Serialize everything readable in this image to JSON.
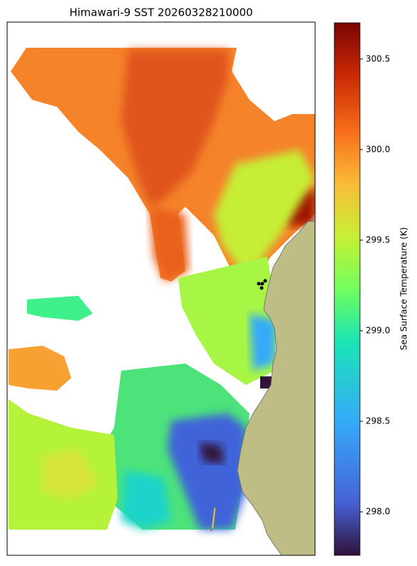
{
  "title": "Himawari-9 SST 20260328210000",
  "colorbar": {
    "label": "Sea Surface Temperature (K)",
    "lim": [
      297.76,
      300.7
    ],
    "ticks": [
      {
        "value": 298,
        "label": "298.0"
      },
      298.5,
      {
        "value": 299,
        "label": "299.0"
      },
      299.5,
      {
        "value": 300,
        "label": "300.0"
      },
      300.5
    ]
  }
}
